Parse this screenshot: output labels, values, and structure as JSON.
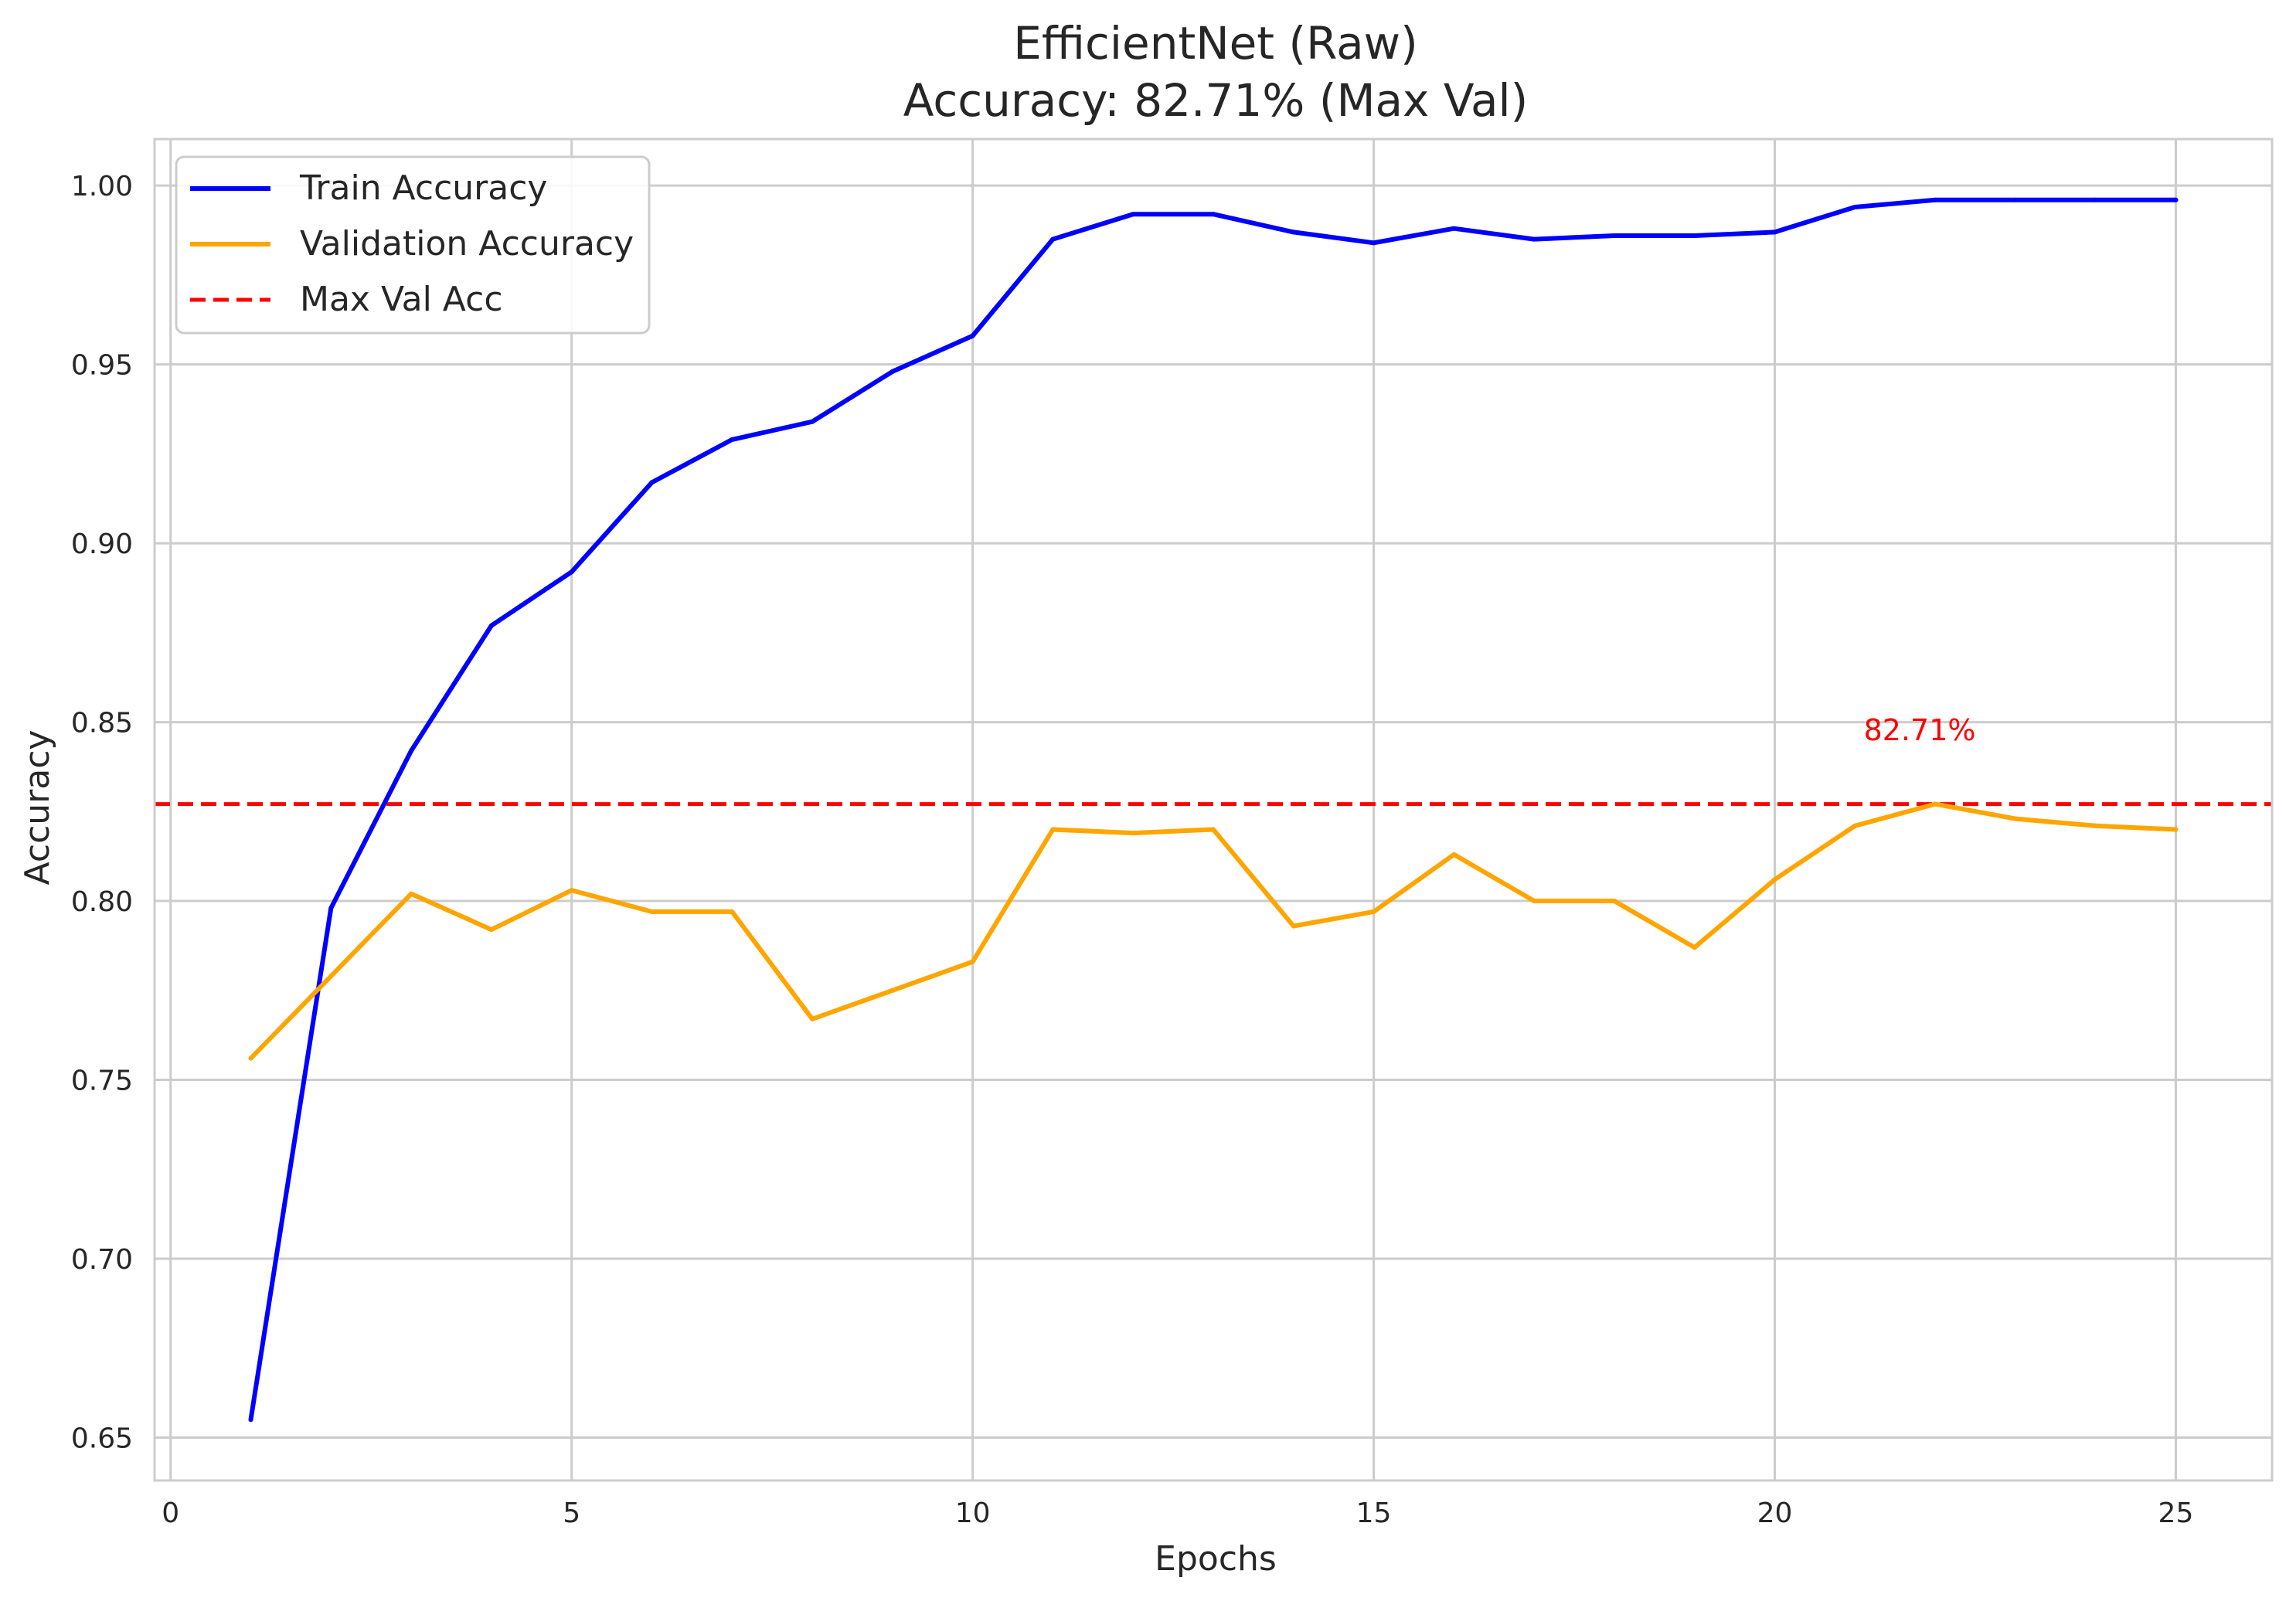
{
  "chart_data": {
    "type": "line",
    "title": "EfficientNet (Raw)",
    "subtitle": "Accuracy: 82.71% (Max Val)",
    "xlabel": "Epochs",
    "ylabel": "Accuracy",
    "xlim": [
      -0.2,
      26.2
    ],
    "ylim": [
      0.638,
      1.013
    ],
    "xticks": [
      0,
      5,
      10,
      15,
      20,
      25
    ],
    "xtick_labels": [
      "0",
      "5",
      "10",
      "15",
      "20",
      "25"
    ],
    "yticks": [
      0.65,
      0.7,
      0.75,
      0.8,
      0.85,
      0.9,
      0.95,
      1.0
    ],
    "ytick_labels": [
      "0.65",
      "0.70",
      "0.75",
      "0.80",
      "0.85",
      "0.90",
      "0.95",
      "1.00"
    ],
    "grid": true,
    "legend_position": "top-left",
    "x": [
      1,
      2,
      3,
      4,
      5,
      6,
      7,
      8,
      9,
      10,
      11,
      12,
      13,
      14,
      15,
      16,
      17,
      18,
      19,
      20,
      21,
      22,
      23,
      24,
      25
    ],
    "series": [
      {
        "name": "Train Accuracy",
        "color": "#0000ff",
        "style": "solid",
        "values": [
          0.655,
          0.798,
          0.842,
          0.877,
          0.892,
          0.917,
          0.929,
          0.934,
          0.948,
          0.958,
          0.985,
          0.992,
          0.992,
          0.987,
          0.984,
          0.988,
          0.985,
          0.986,
          0.986,
          0.987,
          0.994,
          0.996,
          0.996,
          0.996,
          0.996
        ]
      },
      {
        "name": "Validation Accuracy",
        "color": "#ffa500",
        "style": "solid",
        "values": [
          0.756,
          0.779,
          0.802,
          0.792,
          0.803,
          0.797,
          0.797,
          0.767,
          0.775,
          0.783,
          0.82,
          0.819,
          0.82,
          0.793,
          0.797,
          0.813,
          0.8,
          0.8,
          0.787,
          0.806,
          0.821,
          0.8271,
          0.823,
          0.821,
          0.82
        ]
      }
    ],
    "hline": {
      "name": "Max Val Acc",
      "y": 0.8271,
      "color": "#ff0000",
      "style": "dashed"
    },
    "annotation": {
      "text": "82.71%",
      "x": 22,
      "y": 0.848,
      "color": "#ff0000"
    }
  }
}
